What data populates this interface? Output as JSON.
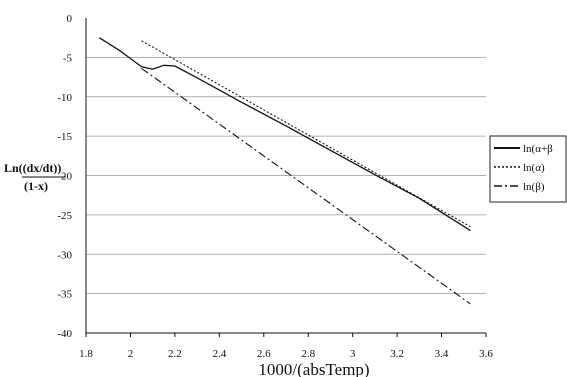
{
  "chart_data": {
    "type": "line",
    "title": "",
    "xlabel": "1000/(absTemp)",
    "ylabel_lines": [
      "Ln((dx/dt))",
      "(1-x)"
    ],
    "xlim": [
      1.8,
      3.6
    ],
    "ylim": [
      -40,
      0
    ],
    "xticks": [
      1.8,
      2,
      2.2,
      2.4,
      2.6,
      2.8,
      3,
      3.2,
      3.4,
      3.6
    ],
    "xtick_labels": [
      "1.8",
      "2",
      "2.2",
      "2.4",
      "2.6",
      "2.8",
      "3",
      "3.2",
      "3.4",
      "3.6"
    ],
    "yticks": [
      0,
      -5,
      -10,
      -15,
      -20,
      -25,
      -30,
      -35,
      -40
    ],
    "ytick_labels": [
      "0",
      "-5",
      "-10",
      "-15",
      "-20",
      "-25",
      "-30",
      "-35",
      "-40"
    ],
    "grid": "horizontal",
    "legend_position": "right",
    "series": [
      {
        "name": "ln(α+β",
        "style": "solid",
        "x": [
          1.86,
          1.95,
          2.05,
          2.1,
          2.15,
          2.2,
          2.3,
          2.5,
          2.7,
          2.9,
          3.1,
          3.3,
          3.53
        ],
        "y": [
          -2.5,
          -4.1,
          -6.2,
          -6.5,
          -6.0,
          -6.1,
          -7.6,
          -10.7,
          -13.7,
          -16.8,
          -19.9,
          -22.9,
          -27.0
        ]
      },
      {
        "name": "ln(α)",
        "style": "dotted",
        "x": [
          2.05,
          3.53
        ],
        "y": [
          -2.9,
          -26.5
        ]
      },
      {
        "name": "ln(β)",
        "style": "dashdot",
        "x": [
          2.05,
          3.53
        ],
        "y": [
          -6.4,
          -36.3
        ]
      }
    ]
  }
}
